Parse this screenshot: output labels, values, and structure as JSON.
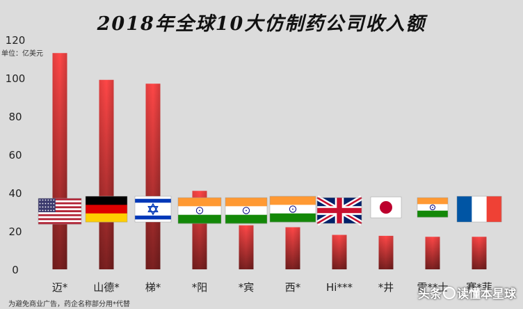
{
  "title": "2018年全球10大仿制药公司收入额",
  "unit_label": "单位：亿美元",
  "footnote": "为避免商业广告，药企名称部分用*代替",
  "watermark": {
    "text_prefix": "头条",
    "text_suffix": "读懂本星球"
  },
  "colors": {
    "bar_top": "#ff4747",
    "bar_bottom": "#7a2020",
    "background": "#dcdcdc"
  },
  "chart_data": {
    "type": "bar",
    "title": "2018年全球10大仿制药公司收入额",
    "ylabel": "单位：亿美元",
    "ylim": [
      0,
      120
    ],
    "yticks": [
      0,
      20,
      40,
      60,
      80,
      100,
      120
    ],
    "grid": false,
    "categories": [
      "迈*",
      "山德*",
      "梯*",
      "*阳",
      "*宾",
      "西*",
      "Hi***",
      "*井",
      "雷**士",
      "赛*菲"
    ],
    "values": [
      113,
      99,
      97,
      41,
      23,
      22,
      18,
      17.5,
      17,
      17
    ],
    "flags": [
      "usa-flag",
      "germany-flag",
      "israel-flag",
      "india-flag",
      "india-flag",
      "india-flag",
      "uk-flag",
      "japan-flag",
      "india-flag",
      "france-flag"
    ]
  }
}
